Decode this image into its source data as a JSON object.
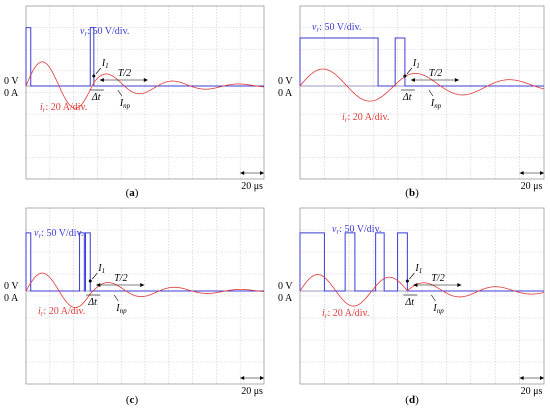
{
  "panels": [
    {
      "id": "a",
      "caption": "(a)",
      "v_label": "v",
      "v_sub": "r",
      "v_scale": ": 50 V/div.",
      "i_label": "i",
      "i_sub": "r",
      "i_scale": ": 20 A/div.",
      "zero_v": "0 V",
      "zero_a": "0 A",
      "time_scale": "20 μs",
      "peak_label": "I",
      "peak_sub": "1",
      "delta_label": "Δt",
      "half_period_label": "T/2",
      "imp_label": "I",
      "imp_sub": "np",
      "pulses": [
        [
          0.0,
          0.02
        ],
        [
          0.27,
          0.285
        ]
      ],
      "pulse_high": 0.73,
      "off_time": 0.285,
      "freq": 3.6,
      "decay": 3.2,
      "amp": 0.35
    },
    {
      "id": "b",
      "caption": "(b)",
      "v_label": "v",
      "v_sub": "r",
      "v_scale": ": 50 V/div.",
      "i_label": "i",
      "i_sub": "r",
      "i_scale": ": 20 A/div.",
      "zero_v": "0 V",
      "zero_a": "0 A",
      "time_scale": "20 μs",
      "peak_label": "I",
      "peak_sub": "1",
      "delta_label": "Δt",
      "half_period_label": "T/2",
      "imp_label": "I",
      "imp_sub": "np",
      "pulses": [
        [
          0.0,
          0.32
        ],
        [
          0.39,
          0.43
        ]
      ],
      "pulse_high": 0.6,
      "off_time": 0.43,
      "freq": 2.6,
      "decay": 1.8,
      "amp": 0.25
    },
    {
      "id": "c",
      "caption": "(c)",
      "v_label": "v",
      "v_sub": "r",
      "v_scale": ": 50 V/div.",
      "i_label": "i",
      "i_sub": "r",
      "i_scale": ": 20 A/div.",
      "zero_v": "0 V",
      "zero_a": "0 A",
      "time_scale": "20 μs",
      "peak_label": "I",
      "peak_sub": "1",
      "delta_label": "Δt",
      "half_period_label": "T/2",
      "imp_label": "I",
      "imp_sub": "np",
      "pulses": [
        [
          0.0,
          0.02
        ],
        [
          0.225,
          0.245
        ],
        [
          0.25,
          0.27
        ]
      ],
      "pulse_high": 0.7,
      "off_time": 0.27,
      "freq": 3.6,
      "decay": 3.0,
      "amp": 0.25
    },
    {
      "id": "d",
      "caption": "(d)",
      "v_label": "v",
      "v_sub": "r",
      "v_scale": ": 50 V/div.",
      "i_label": "i",
      "i_sub": "r",
      "i_scale": ": 20 A/div.",
      "zero_v": "0 V",
      "zero_a": "0 A",
      "time_scale": "20 μs",
      "peak_label": "I",
      "peak_sub": "1",
      "delta_label": "Δt",
      "half_period_label": "T/2",
      "imp_label": "I",
      "imp_sub": "np",
      "pulses": [
        [
          0.0,
          0.1
        ],
        [
          0.185,
          0.225
        ],
        [
          0.31,
          0.345
        ],
        [
          0.4,
          0.44
        ]
      ],
      "pulse_high": 0.7,
      "off_time": 0.44,
      "freq": 3.4,
      "decay": 2.2,
      "amp": 0.23
    }
  ],
  "colors": {
    "voltage": "#3b3bd6",
    "current": "#e23a3a",
    "grid": "#c8c8c8",
    "frame": "#9a9a9a",
    "zero_line": "#7a7aa8"
  },
  "chart_data": [
    {
      "type": "line",
      "panel": "(a)",
      "series": [
        {
          "name": "v_r",
          "scale": "50 V/div."
        },
        {
          "name": "i_r",
          "scale": "20 A/div."
        }
      ],
      "time_per_div": "20 μs",
      "annotations": [
        "I1",
        "Δt",
        "T/2",
        "Inp"
      ]
    },
    {
      "type": "line",
      "panel": "(b)",
      "series": [
        {
          "name": "v_r",
          "scale": "50 V/div."
        },
        {
          "name": "i_r",
          "scale": "20 A/div."
        }
      ],
      "time_per_div": "20 μs",
      "annotations": [
        "I1",
        "Δt",
        "T/2",
        "Inp"
      ]
    },
    {
      "type": "line",
      "panel": "(c)",
      "series": [
        {
          "name": "v_r",
          "scale": "50 V/div."
        },
        {
          "name": "i_r",
          "scale": "20 A/div."
        }
      ],
      "time_per_div": "20 μs",
      "annotations": [
        "I1",
        "Δt",
        "T/2",
        "Inp"
      ]
    },
    {
      "type": "line",
      "panel": "(d)",
      "series": [
        {
          "name": "v_r",
          "scale": "50 V/div."
        },
        {
          "name": "i_r",
          "scale": "20 A/div."
        }
      ],
      "time_per_div": "20 μs",
      "annotations": [
        "I1",
        "Δt",
        "T/2",
        "Inp"
      ]
    }
  ]
}
